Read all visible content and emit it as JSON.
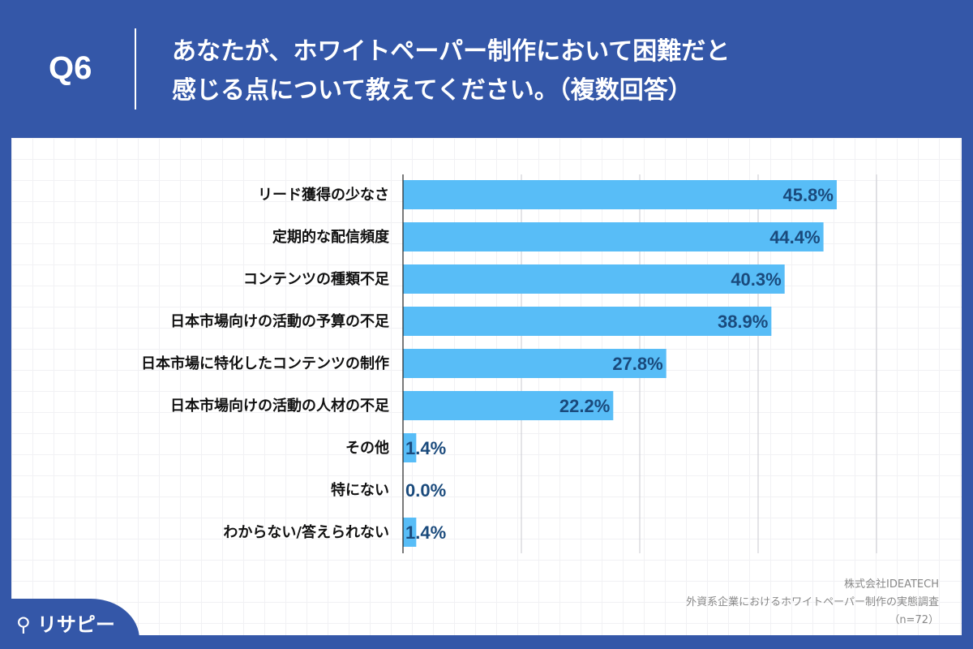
{
  "header": {
    "question_no": "Q6",
    "title_line1": "あなたが、ホワイトペーパー制作において困難だと",
    "title_line2": "感じる点について教えてください。（複数回答）"
  },
  "chart_data": {
    "type": "bar",
    "orientation": "horizontal",
    "categories": [
      "リード獲得の少なさ",
      "定期的な配信頻度",
      "コンテンツの種類不足",
      "日本市場向けの活動の予算の不足",
      "日本市場に特化したコンテンツの制作",
      "日本市場向けの活動の人材の不足",
      "その他",
      "特にない",
      "わからない/答えられない"
    ],
    "values": [
      45.8,
      44.4,
      40.3,
      38.9,
      27.8,
      22.2,
      1.4,
      0.0,
      1.4
    ],
    "value_labels": [
      "45.8%",
      "44.4%",
      "40.3%",
      "38.9%",
      "27.8%",
      "22.2%",
      "1.4%",
      "0.0%",
      "1.4%"
    ],
    "xlim": [
      0,
      50
    ],
    "grid": true,
    "bar_color": "#58bdf7",
    "label_color": "#1a4a7c"
  },
  "source": {
    "company": "株式会社IDEATECH",
    "survey": "外資系企業におけるホワイトペーパー制作の実態調査",
    "n": "（n=72）"
  },
  "logo": {
    "text": "リサピー"
  },
  "colors": {
    "background": "#3457a8",
    "panel": "#ffffff"
  }
}
